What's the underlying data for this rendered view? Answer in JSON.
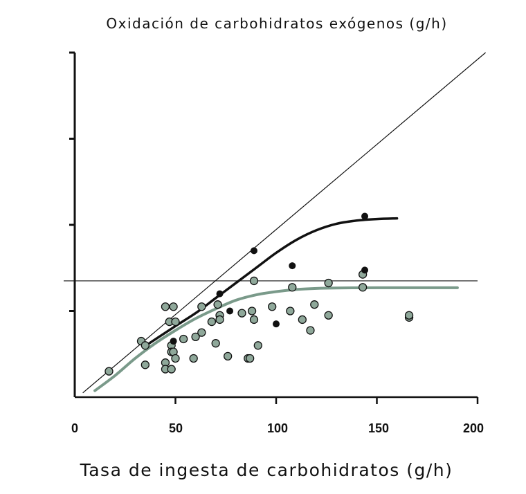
{
  "chart_data": {
    "type": "scatter",
    "title": "Oxidación de carbohidratos exógenos (g/h)",
    "xlabel": "Tasa de ingesta de carbohidratos (g/h)",
    "ylabel": "",
    "xlim": [
      0,
      200
    ],
    "ylim": [
      0,
      160
    ],
    "x_ticks": [
      "0",
      "50",
      "100",
      "150",
      "200"
    ],
    "y_tick_values": [
      40,
      80,
      120
    ],
    "y_tick_labels_shown": false,
    "grid": false,
    "legend": "none",
    "identity_line": {
      "from": [
        4,
        2
      ],
      "to": [
        204,
        160
      ]
    },
    "horizontal_reference_line": {
      "y": 54
    },
    "series": [
      {
        "color": "#111111",
        "marker": "black-dot",
        "points": [
          [
            49,
            26
          ],
          [
            72,
            48
          ],
          [
            77,
            40
          ],
          [
            89,
            68
          ],
          [
            100,
            34
          ],
          [
            108,
            61
          ],
          [
            144,
            84
          ],
          [
            144,
            59
          ]
        ],
        "fit_curve": [
          [
            37,
            25
          ],
          [
            50,
            33
          ],
          [
            60,
            39
          ],
          [
            70,
            46
          ],
          [
            80,
            53
          ],
          [
            90,
            60
          ],
          [
            100,
            67
          ],
          [
            110,
            73
          ],
          [
            120,
            77.5
          ],
          [
            130,
            80.5
          ],
          [
            140,
            82
          ],
          [
            150,
            82.7
          ],
          [
            160,
            83
          ]
        ]
      },
      {
        "color": "#8fa89a",
        "marker": "grey-green-circle",
        "points": [
          [
            17,
            12
          ],
          [
            33,
            26
          ],
          [
            35,
            24
          ],
          [
            35,
            15
          ],
          [
            45,
            16
          ],
          [
            45,
            13
          ],
          [
            45,
            42
          ],
          [
            47,
            35
          ],
          [
            48,
            24
          ],
          [
            48,
            21
          ],
          [
            48,
            13
          ],
          [
            49,
            42
          ],
          [
            49,
            21
          ],
          [
            50,
            18
          ],
          [
            50,
            35
          ],
          [
            54,
            27
          ],
          [
            59,
            18
          ],
          [
            60,
            28
          ],
          [
            63,
            30
          ],
          [
            63,
            42
          ],
          [
            68,
            35
          ],
          [
            70,
            25
          ],
          [
            71,
            43
          ],
          [
            72,
            38
          ],
          [
            72,
            36
          ],
          [
            76,
            19
          ],
          [
            83,
            39
          ],
          [
            86,
            18
          ],
          [
            87,
            18
          ],
          [
            88,
            40
          ],
          [
            89,
            36
          ],
          [
            89,
            54
          ],
          [
            91,
            24
          ],
          [
            98,
            42
          ],
          [
            107,
            40
          ],
          [
            108,
            51
          ],
          [
            113,
            36
          ],
          [
            117,
            31
          ],
          [
            119,
            43
          ],
          [
            126,
            38
          ],
          [
            126,
            53
          ],
          [
            143,
            51
          ],
          [
            143,
            57
          ],
          [
            166,
            37
          ],
          [
            166,
            38
          ]
        ],
        "fit_curve": [
          [
            10,
            3
          ],
          [
            20,
            10
          ],
          [
            30,
            18
          ],
          [
            40,
            25
          ],
          [
            50,
            31
          ],
          [
            60,
            36.5
          ],
          [
            70,
            41
          ],
          [
            80,
            45
          ],
          [
            90,
            47.5
          ],
          [
            100,
            49
          ],
          [
            110,
            50
          ],
          [
            120,
            50.5
          ],
          [
            130,
            50.7
          ],
          [
            150,
            50.8
          ],
          [
            170,
            50.8
          ],
          [
            190,
            50.8
          ]
        ]
      }
    ]
  }
}
